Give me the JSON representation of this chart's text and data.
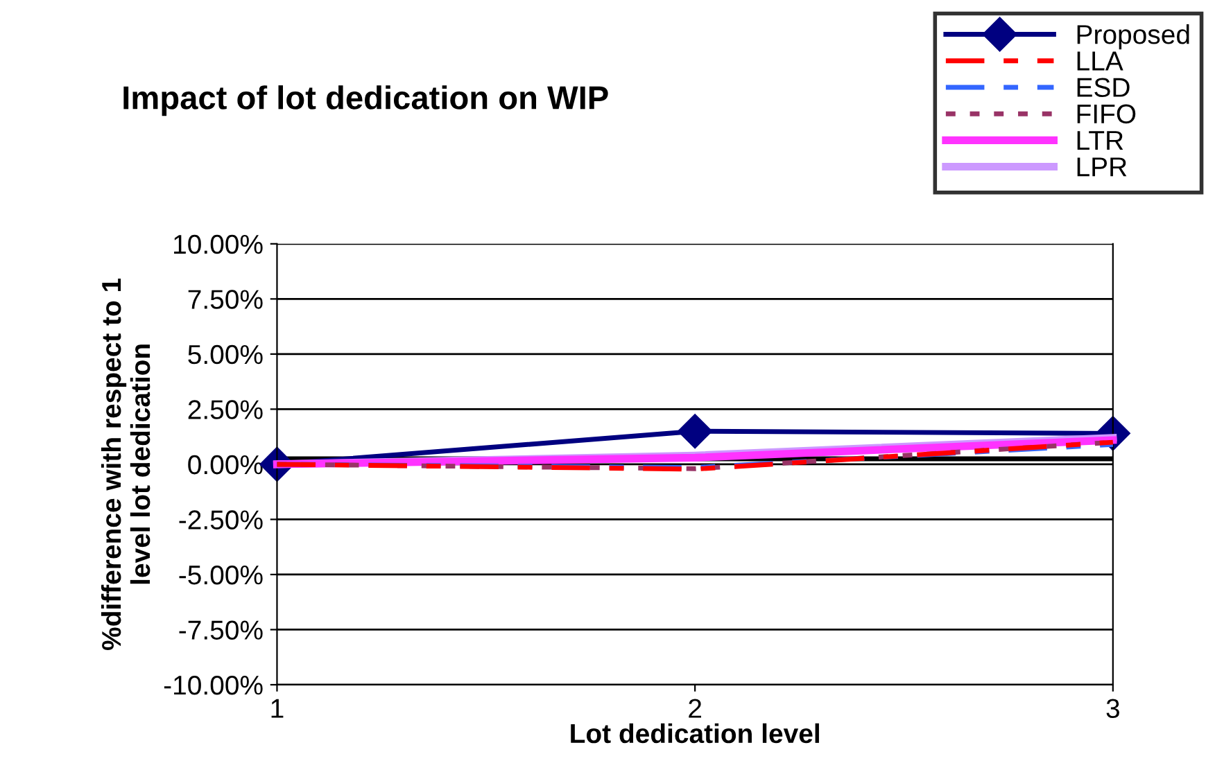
{
  "chart_data": {
    "type": "line",
    "title": "Impact of lot dedication on WIP",
    "xlabel": "Lot dedication level",
    "ylabel": "%difference with respect to 1\nlevel lot dedication",
    "categories": [
      "1",
      "2",
      "3"
    ],
    "series": [
      {
        "name": "Proposed",
        "color": "#000080",
        "values": [
          0.0,
          1.5,
          1.4
        ],
        "marker": "diamond",
        "line_style": "solid"
      },
      {
        "name": "LLA",
        "color": "#ff0000",
        "values": [
          0.0,
          -0.22,
          1.0
        ],
        "marker": "none",
        "line_style": "dashdot"
      },
      {
        "name": "ESD",
        "color": "#3366ff",
        "values": [
          0.0,
          -0.15,
          0.9
        ],
        "marker": "none",
        "line_style": "dashdot"
      },
      {
        "name": "FIFO",
        "color": "#993366",
        "values": [
          0.0,
          -0.2,
          1.0
        ],
        "marker": "none",
        "line_style": "dashed"
      },
      {
        "name": "LTR",
        "color": "#ff33ff",
        "values": [
          0.0,
          0.3,
          1.1
        ],
        "marker": "none",
        "line_style": "solid"
      },
      {
        "name": "LPR",
        "color": "#cc99ff",
        "values": [
          0.0,
          0.4,
          1.2
        ],
        "marker": "none",
        "line_style": "solid"
      }
    ],
    "ylim": [
      -10,
      10
    ],
    "yticks": [
      {
        "value": -10,
        "label": "-10.00%"
      },
      {
        "value": -7.5,
        "label": "-7.50%"
      },
      {
        "value": -5,
        "label": "-5.00%"
      },
      {
        "value": -2.5,
        "label": "-2.50%"
      },
      {
        "value": 0,
        "label": "0.00%"
      },
      {
        "value": 2.5,
        "label": "2.50%"
      },
      {
        "value": 5,
        "label": "5.00%"
      },
      {
        "value": 7.5,
        "label": "7.50%"
      },
      {
        "value": 10,
        "label": "10.00%"
      }
    ],
    "ref_lines": [
      {
        "axis": "y",
        "value": 0.25,
        "color": "#000000"
      }
    ],
    "grid": "y",
    "legend": "top right"
  }
}
